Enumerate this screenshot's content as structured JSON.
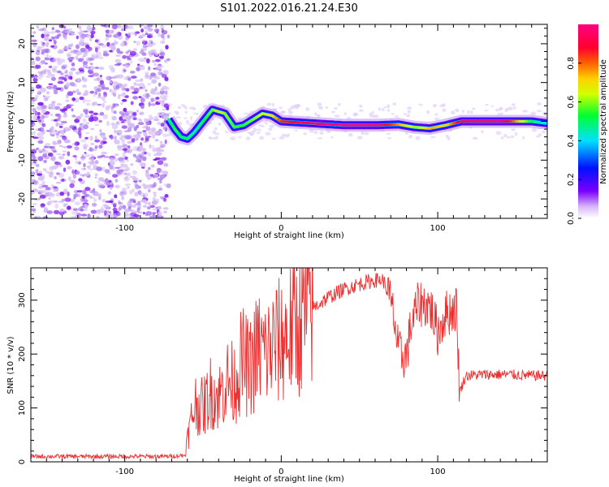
{
  "title": "S101.2022.016.21.24.E30",
  "chart_data": [
    {
      "type": "heatmap",
      "title": "S101.2022.016.21.24.E30",
      "xlabel": "Height of straight line (km)",
      "ylabel": "Frequency (Hz)",
      "xlim": [
        -160,
        170
      ],
      "ylim": [
        -25,
        25
      ],
      "x_ticks": [
        -100,
        0,
        100
      ],
      "x_tick_labels": [
        "-100",
        "0",
        "100"
      ],
      "y_ticks": [
        -20,
        -10,
        0,
        10,
        20
      ],
      "y_tick_labels": [
        "-20",
        "-10",
        "0",
        "10",
        "20"
      ],
      "colorbar": {
        "label": "Normalized spectral amplitude",
        "range": [
          0,
          1
        ],
        "ticks": [
          0,
          0.2,
          0.4,
          0.6,
          0.8
        ],
        "tick_labels": [
          "0.0",
          "0.2",
          "0.4",
          "0.6",
          "0.8"
        ],
        "colormap": "rainbow (purple-blue-cyan-green-yellow-red-magenta)"
      },
      "noise_region": {
        "x_range": [
          -160,
          -72
        ],
        "frequency_range": [
          -25,
          25
        ],
        "amplitude": 0.1
      },
      "signal_ridge": [
        {
          "x": -72,
          "f": 0.5,
          "amp": 0.5
        },
        {
          "x": -68,
          "f": -2,
          "amp": 0.55
        },
        {
          "x": -64,
          "f": -4,
          "amp": 0.5
        },
        {
          "x": -60,
          "f": -4.5,
          "amp": 0.5
        },
        {
          "x": -56,
          "f": -3,
          "amp": 0.45
        },
        {
          "x": -52,
          "f": -1,
          "amp": 0.5
        },
        {
          "x": -48,
          "f": 1,
          "amp": 0.55
        },
        {
          "x": -44,
          "f": 3,
          "amp": 0.6
        },
        {
          "x": -40,
          "f": 2.5,
          "amp": 0.65
        },
        {
          "x": -36,
          "f": 2,
          "amp": 0.6
        },
        {
          "x": -30,
          "f": -1.5,
          "amp": 0.55
        },
        {
          "x": -24,
          "f": -1,
          "amp": 0.55
        },
        {
          "x": -18,
          "f": 0.5,
          "amp": 0.6
        },
        {
          "x": -12,
          "f": 2,
          "amp": 0.65
        },
        {
          "x": -6,
          "f": 1.5,
          "amp": 0.7
        },
        {
          "x": 0,
          "f": 0,
          "amp": 0.85
        },
        {
          "x": 20,
          "f": -0.5,
          "amp": 0.95
        },
        {
          "x": 40,
          "f": -1,
          "amp": 1.0
        },
        {
          "x": 60,
          "f": -1,
          "amp": 1.0
        },
        {
          "x": 75,
          "f": -0.8,
          "amp": 0.75
        },
        {
          "x": 85,
          "f": -1.5,
          "amp": 0.6
        },
        {
          "x": 95,
          "f": -1.8,
          "amp": 0.75
        },
        {
          "x": 105,
          "f": -1,
          "amp": 0.7
        },
        {
          "x": 115,
          "f": 0,
          "amp": 0.95
        },
        {
          "x": 140,
          "f": 0,
          "amp": 1.0
        },
        {
          "x": 160,
          "f": 0,
          "amp": 0.5
        },
        {
          "x": 170,
          "f": -0.5,
          "amp": 0.4
        }
      ]
    },
    {
      "type": "line",
      "xlabel": "Height of straight line (km)",
      "ylabel": "SNR (10 * v/v)",
      "xlim": [
        -160,
        170
      ],
      "ylim": [
        0,
        360
      ],
      "x_ticks": [
        -100,
        0,
        100
      ],
      "x_tick_labels": [
        "-100",
        "0",
        "100"
      ],
      "y_ticks": [
        0,
        100,
        200,
        300
      ],
      "y_tick_labels": [
        "0",
        "100",
        "200",
        "300"
      ],
      "series": [
        {
          "color": "#ee2e2e",
          "points": [
            [
              -160,
              10
            ],
            [
              -130,
              10
            ],
            [
              -100,
              10
            ],
            [
              -75,
              10
            ],
            [
              -62,
              12
            ],
            [
              -58,
              70
            ],
            [
              -55,
              110
            ],
            [
              -50,
              100
            ],
            [
              -45,
              130
            ],
            [
              -40,
              120
            ],
            [
              -35,
              150
            ],
            [
              -30,
              145
            ],
            [
              -25,
              190
            ],
            [
              -20,
              170
            ],
            [
              -15,
              210
            ],
            [
              -10,
              200
            ],
            [
              -5,
              215
            ],
            [
              0,
              225
            ],
            [
              10,
              255
            ],
            [
              20,
              285
            ],
            [
              30,
              305
            ],
            [
              40,
              320
            ],
            [
              50,
              330
            ],
            [
              60,
              337
            ],
            [
              65,
              338
            ],
            [
              68,
              315
            ],
            [
              72,
              270
            ],
            [
              75,
              200
            ],
            [
              80,
              195
            ],
            [
              83,
              255
            ],
            [
              88,
              295
            ],
            [
              95,
              290
            ],
            [
              100,
              240
            ],
            [
              105,
              275
            ],
            [
              112,
              285
            ],
            [
              114,
              130
            ],
            [
              118,
              160
            ],
            [
              130,
              162
            ],
            [
              145,
              162
            ],
            [
              160,
              160
            ],
            [
              170,
              160
            ]
          ]
        }
      ]
    }
  ]
}
